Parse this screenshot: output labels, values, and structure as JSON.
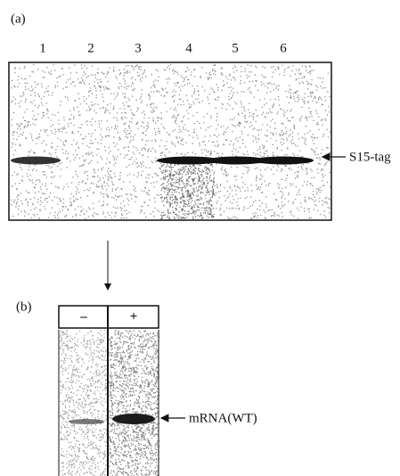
{
  "panel_a": {
    "label": "(a)",
    "lanes": [
      "1",
      "2",
      "3",
      "4",
      "5",
      "6"
    ],
    "band_label": "S15-tag"
  },
  "panel_b": {
    "label": "(b)",
    "columns": [
      "–",
      "+"
    ],
    "band_label": "mRNA(WT)"
  }
}
